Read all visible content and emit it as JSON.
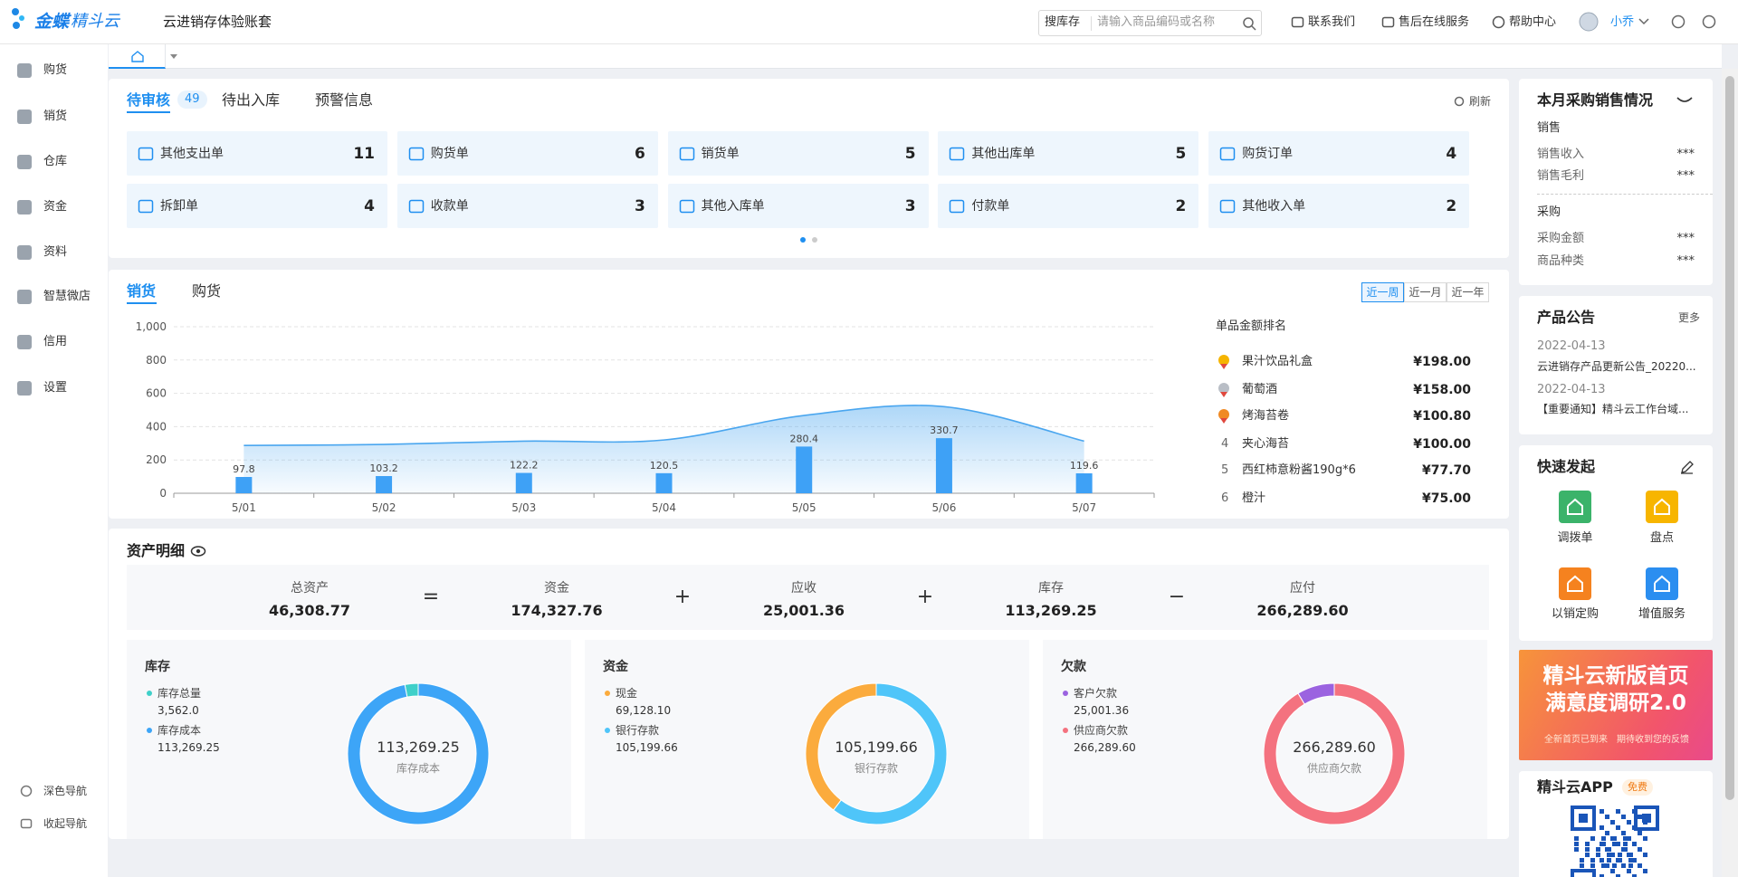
{
  "header": {
    "brand": "金蝶",
    "brand_sub": "精斗云",
    "account": "云进销存体验账套",
    "search_scope": "搜库存",
    "search_placeholder": "请输入商品编码或名称",
    "links": [
      "联系我们",
      "售后在线服务",
      "帮助中心"
    ],
    "user": "小乔"
  },
  "sidebar": {
    "items": [
      "购货",
      "销货",
      "仓库",
      "资金",
      "资料",
      "智慧微店",
      "信用",
      "设置"
    ],
    "footer": [
      "深色导航",
      "收起导航"
    ]
  },
  "tasks": {
    "tabs": [
      "待审核",
      "待出入库",
      "预警信息"
    ],
    "badge": 49,
    "refresh": "刷新",
    "items": [
      {
        "label": "其他支出单",
        "count": 11
      },
      {
        "label": "购货单",
        "count": 6
      },
      {
        "label": "销货单",
        "count": 5
      },
      {
        "label": "其他出库单",
        "count": 5
      },
      {
        "label": "购货订单",
        "count": 4
      },
      {
        "label": "拆卸单",
        "count": 4
      },
      {
        "label": "收款单",
        "count": 3
      },
      {
        "label": "其他入库单",
        "count": 3
      },
      {
        "label": "付款单",
        "count": 2
      },
      {
        "label": "其他收入单",
        "count": 2
      }
    ]
  },
  "sales": {
    "tabs": [
      "销货",
      "购货"
    ],
    "ranges": [
      "近一周",
      "近一月",
      "近一年"
    ],
    "ranking": {
      "title": "单品金额排名",
      "items": [
        {
          "name": "果汁饮品礼盒",
          "amount": "¥198.00"
        },
        {
          "name": "葡萄酒",
          "amount": "¥158.00"
        },
        {
          "name": "烤海苔卷",
          "amount": "¥100.80"
        },
        {
          "rank": 4,
          "name": "夹心海苔",
          "amount": "¥100.00"
        },
        {
          "rank": 5,
          "name": "西红柿意粉酱190g*6",
          "amount": "¥77.70"
        },
        {
          "rank": 6,
          "name": "橙汁",
          "amount": "¥75.00"
        }
      ]
    }
  },
  "chart_data": [
    {
      "type": "bar",
      "categories": [
        "5/01",
        "5/02",
        "5/03",
        "5/04",
        "5/05",
        "5/06",
        "5/07"
      ],
      "series": [
        {
          "type": "bar",
          "color": "#3ea1f6",
          "values": [
            97.8,
            103.2,
            122.2,
            120.5,
            280.4,
            330.7,
            119.6
          ]
        },
        {
          "type": "area",
          "color": "#4aa6ef",
          "values": [
            287,
            293,
            313,
            320,
            467,
            520,
            313
          ]
        }
      ],
      "ylim": [
        0,
        1000
      ],
      "yticks": [
        0,
        200,
        400,
        600,
        800,
        {
          "value": 1000,
          "label": "1,000"
        }
      ],
      "grid": true
    },
    {
      "type": "pie",
      "title": "库存",
      "center_value": "113,269.25",
      "center_label": "库存成本",
      "categories": [
        "库存总量",
        "库存成本"
      ],
      "values": [
        3562.0,
        113269.25
      ],
      "value_labels": [
        "3,562.0",
        "113,269.25"
      ],
      "colors": [
        "#3fd0c9",
        "#3da5f7"
      ]
    },
    {
      "type": "pie",
      "title": "资金",
      "center_value": "105,199.66",
      "center_label": "银行存款",
      "categories": [
        "现金",
        "银行存款"
      ],
      "values": [
        69128.1,
        105199.66
      ],
      "value_labels": [
        "69,128.10",
        "105,199.66"
      ],
      "colors": [
        "#fbab3d",
        "#4fc5f9"
      ]
    },
    {
      "type": "pie",
      "title": "欠款",
      "center_value": "266,289.60",
      "center_label": "供应商欠款",
      "categories": [
        "客户欠款",
        "供应商欠款"
      ],
      "values": [
        25001.36,
        266289.6
      ],
      "value_labels": [
        "25,001.36",
        "266,289.60"
      ],
      "colors": [
        "#9b63e0",
        "#f4727f"
      ]
    }
  ],
  "assets": {
    "title": "资产明细",
    "terms": [
      {
        "label": "总资产",
        "value": "46,308.77"
      },
      {
        "op": "=",
        "label": "资金",
        "value": "174,327.76"
      },
      {
        "op": "+",
        "label": "应收",
        "value": "25,001.36"
      },
      {
        "op": "+",
        "label": "库存",
        "value": "113,269.25"
      },
      {
        "op": "−",
        "label": "应付",
        "value": "266,289.60"
      }
    ]
  },
  "summary": {
    "title": "本月采购销售情况",
    "groups": [
      {
        "title": "销售",
        "rows": [
          {
            "label": "销售收入",
            "value": "***"
          },
          {
            "label": "销售毛利",
            "value": "***"
          }
        ]
      },
      {
        "title": "采购",
        "rows": [
          {
            "label": "采购金额",
            "value": "***"
          },
          {
            "label": "商品种类",
            "value": "***"
          }
        ]
      }
    ]
  },
  "notices": {
    "title": "产品公告",
    "more": "更多",
    "items": [
      {
        "date": "2022-04-13",
        "text": "云进销存产品更新公告_20220..."
      },
      {
        "date": "2022-04-13",
        "text": "【重要通知】精斗云工作台域..."
      }
    ]
  },
  "quick": {
    "title": "快速发起",
    "items": [
      "调拨单",
      "盘点",
      "以销定购",
      "增值服务"
    ]
  },
  "banner": {
    "title": [
      "精斗云新版首页",
      "满意度调研2.0"
    ],
    "subtitle": [
      "全新首页已到来",
      "期待收到您的反馈"
    ]
  },
  "app": {
    "title": "精斗云APP",
    "tag": "免费"
  }
}
